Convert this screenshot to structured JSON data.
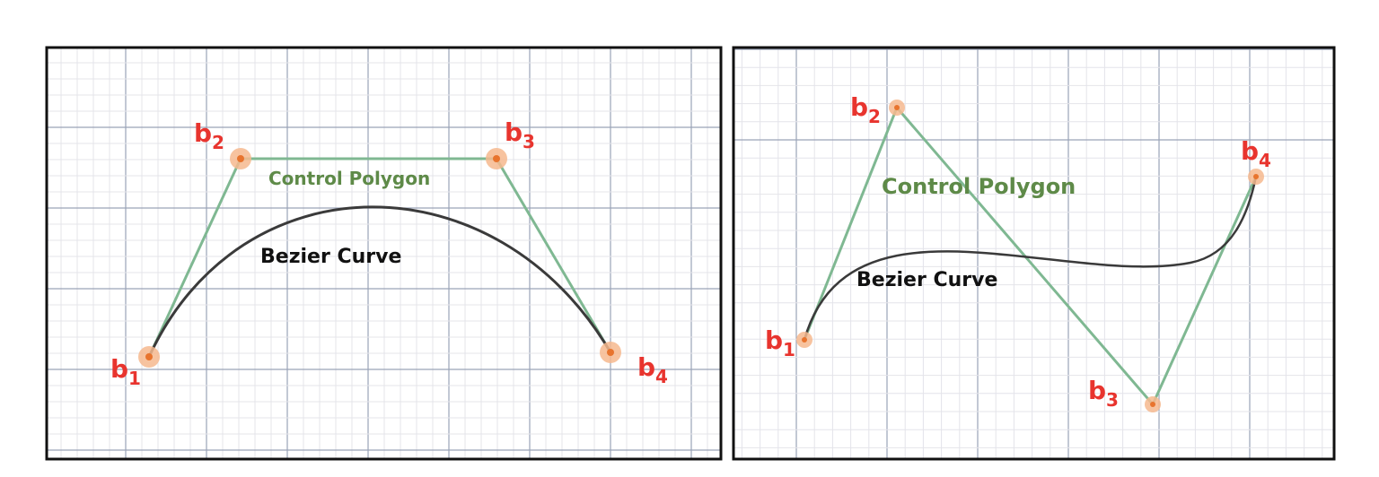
{
  "colors": {
    "frame": "#111111",
    "grid_minor": "#e4e4ea",
    "grid_major": "#9aa3b8",
    "polygon": "#7fb892",
    "curve": "#3a3a3a",
    "point_halo": "#f6b98e",
    "point_core": "#e8742e",
    "label_point": "#e8342e",
    "label_polygon": "#5e8a48",
    "label_curve": "#111111"
  },
  "panels": [
    {
      "polygon_label": "Control Polygon",
      "curve_label": "Bezier Curve",
      "points": [
        {
          "base": "b",
          "sub": "1"
        },
        {
          "base": "b",
          "sub": "2"
        },
        {
          "base": "b",
          "sub": "3"
        },
        {
          "base": "b",
          "sub": "4"
        }
      ]
    },
    {
      "polygon_label": "Control Polygon",
      "curve_label": "Bezier Curve",
      "points": [
        {
          "base": "b",
          "sub": "1"
        },
        {
          "base": "b",
          "sub": "2"
        },
        {
          "base": "b",
          "sub": "3"
        },
        {
          "base": "b",
          "sub": "4"
        }
      ]
    }
  ]
}
